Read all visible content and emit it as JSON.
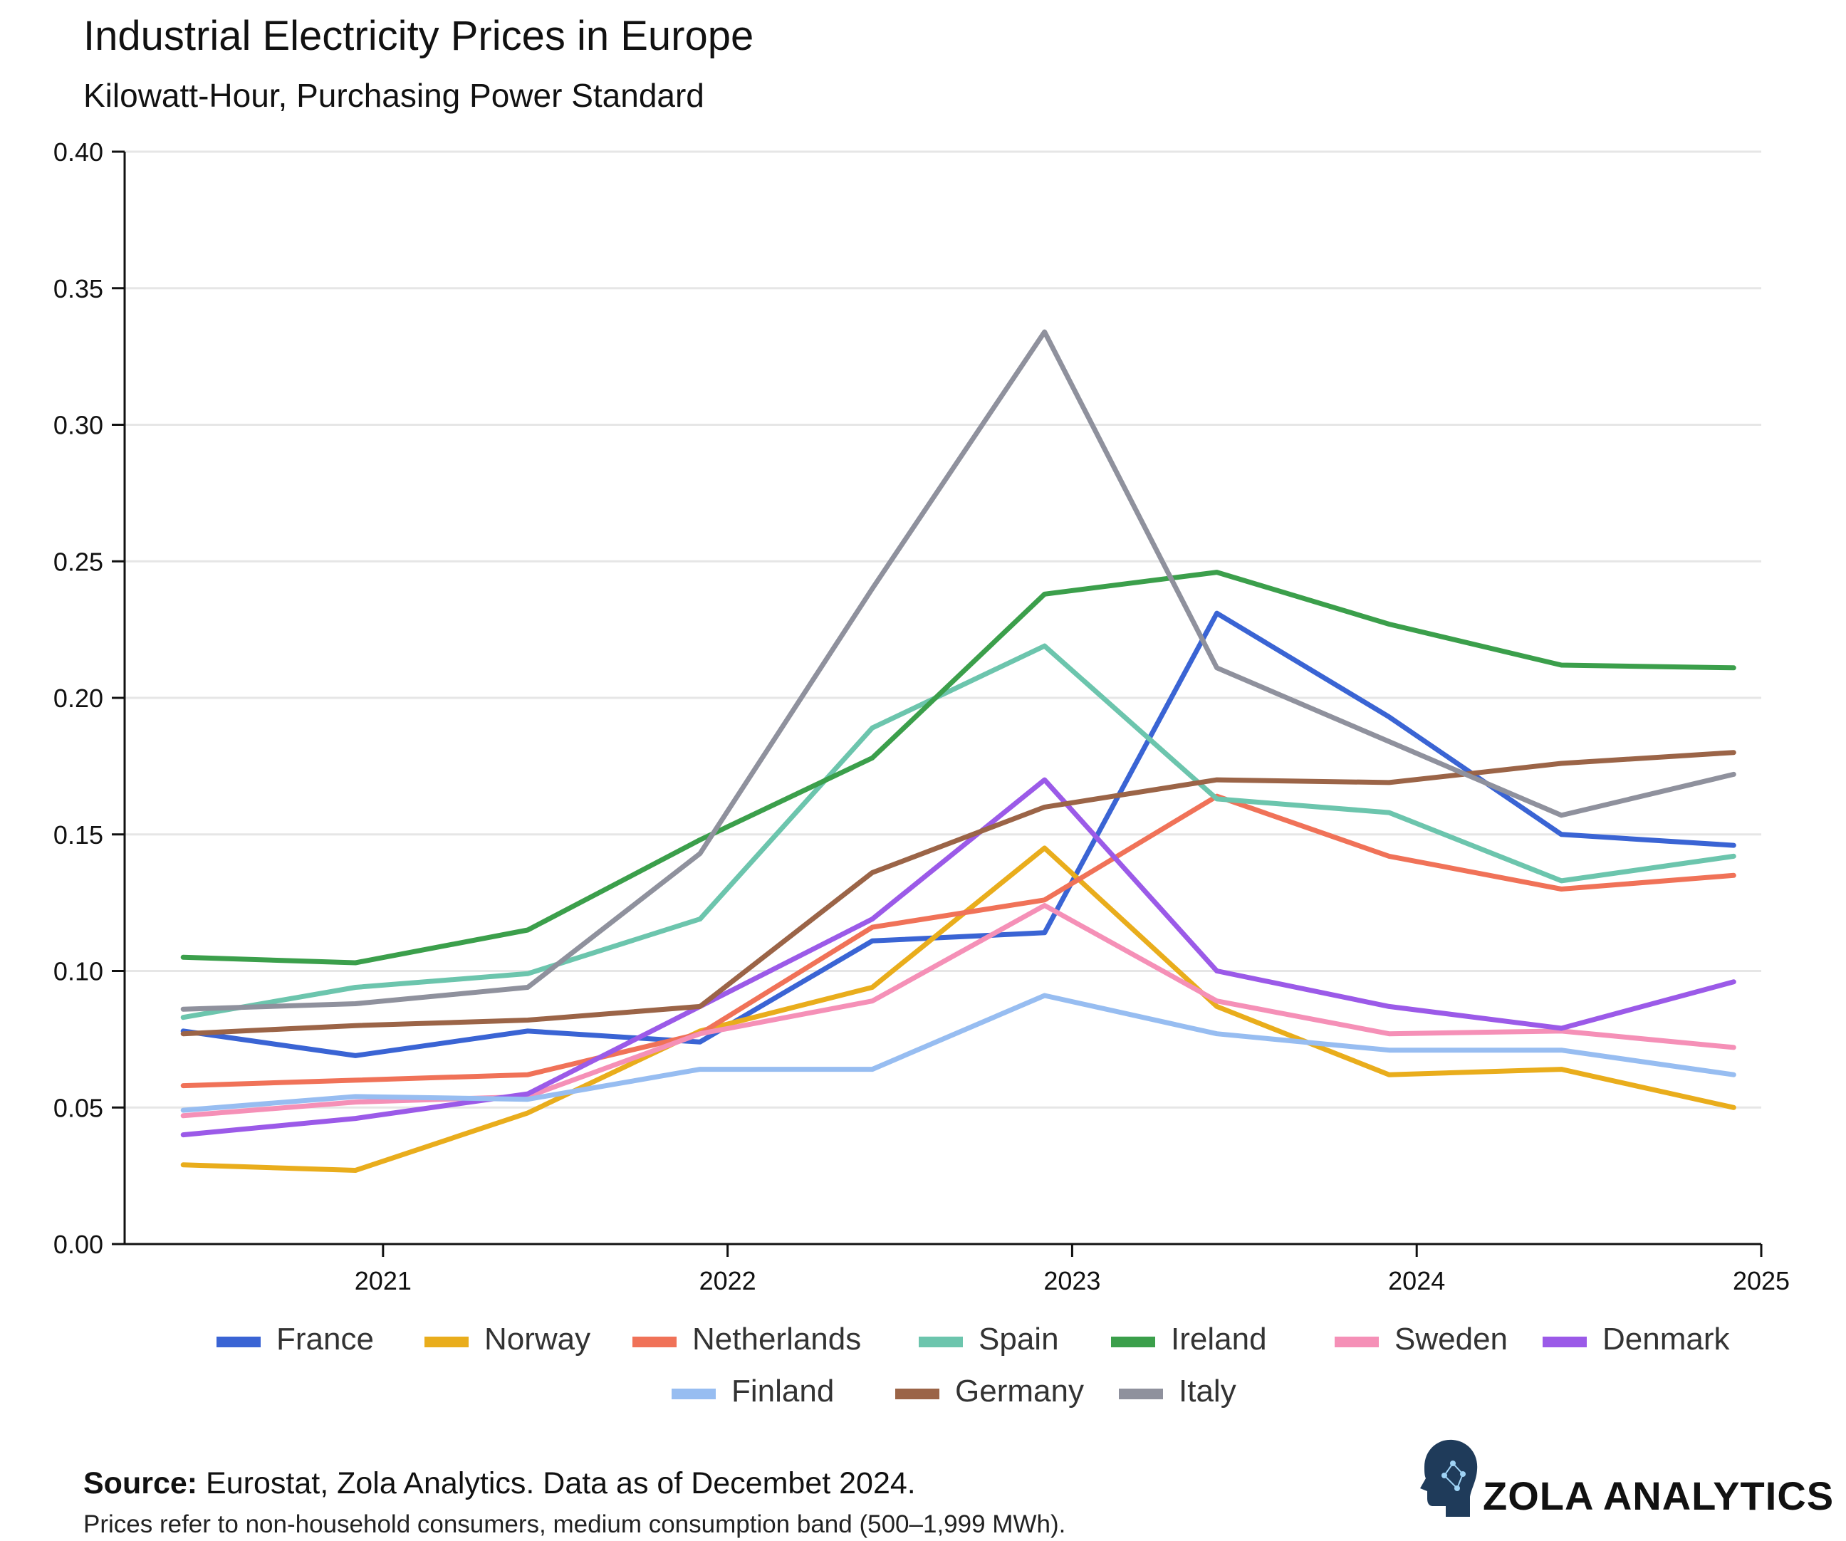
{
  "chart_data": {
    "type": "line",
    "title": "Industrial Electricity Prices in Europe",
    "subtitle": "Kilowatt-Hour, Purchasing Power Standard",
    "xlabel": "",
    "ylabel": "",
    "x": [
      2020.42,
      2020.92,
      2021.42,
      2021.92,
      2022.42,
      2022.92,
      2023.42,
      2023.92,
      2024.42,
      2024.92
    ],
    "xlim": [
      2020.25,
      2025.0
    ],
    "ylim": [
      0.0,
      0.4
    ],
    "xticks": [
      2021,
      2022,
      2023,
      2024,
      2025
    ],
    "xtick_labels": [
      "2021",
      "2022",
      "2023",
      "2024",
      "2025"
    ],
    "yticks": [
      0.0,
      0.05,
      0.1,
      0.15,
      0.2,
      0.25,
      0.3,
      0.35,
      0.4
    ],
    "ytick_labels": [
      "0.00",
      "0.05",
      "0.10",
      "0.15",
      "0.20",
      "0.25",
      "0.30",
      "0.35",
      "0.40"
    ],
    "grid": "horizontal",
    "legend_position": "bottom",
    "series": [
      {
        "name": "France",
        "color": "#3a64d4",
        "values": [
          0.078,
          0.069,
          0.078,
          0.074,
          0.111,
          0.114,
          0.231,
          0.193,
          0.15,
          0.146
        ]
      },
      {
        "name": "Norway",
        "color": "#e9ad1c",
        "values": [
          0.029,
          0.027,
          0.048,
          0.078,
          0.094,
          0.145,
          0.087,
          0.062,
          0.064,
          0.05
        ]
      },
      {
        "name": "Netherlands",
        "color": "#f07258",
        "values": [
          0.058,
          0.06,
          0.062,
          0.077,
          0.116,
          0.126,
          0.164,
          0.142,
          0.13,
          0.135
        ]
      },
      {
        "name": "Spain",
        "color": "#6cc5ad",
        "values": [
          0.083,
          0.094,
          0.099,
          0.119,
          0.189,
          0.219,
          0.163,
          0.158,
          0.133,
          0.142
        ]
      },
      {
        "name": "Ireland",
        "color": "#3b9f4b",
        "values": [
          0.105,
          0.103,
          0.115,
          0.148,
          0.178,
          0.238,
          0.246,
          0.227,
          0.212,
          0.211
        ]
      },
      {
        "name": "Sweden",
        "color": "#f590b7",
        "values": [
          0.047,
          0.052,
          0.054,
          0.077,
          0.089,
          0.124,
          0.089,
          0.077,
          0.078,
          0.072
        ]
      },
      {
        "name": "Denmark",
        "color": "#9b5ae8",
        "values": [
          0.04,
          0.046,
          0.055,
          0.087,
          0.119,
          0.17,
          0.1,
          0.087,
          0.079,
          0.096
        ]
      },
      {
        "name": "Finland",
        "color": "#97bdf1",
        "values": [
          0.049,
          0.054,
          0.053,
          0.064,
          0.064,
          0.091,
          0.077,
          0.071,
          0.071,
          0.062
        ]
      },
      {
        "name": "Germany",
        "color": "#9b6447",
        "values": [
          0.077,
          0.08,
          0.082,
          0.087,
          0.136,
          0.16,
          0.17,
          0.169,
          0.176,
          0.18
        ]
      },
      {
        "name": "Italy",
        "color": "#8f919d",
        "values": [
          0.086,
          0.088,
          0.094,
          0.143,
          0.24,
          0.334,
          0.211,
          0.184,
          0.157,
          0.172
        ]
      }
    ]
  },
  "footer": {
    "source_label": "Source:",
    "source_text": " Eurostat, Zola Analytics. Data as of Decembet 2024.",
    "note": "Prices refer to non-household consumers, medium consumption band (500–1,999 MWh).",
    "brand": "ZOLA ANALYTICS",
    "brand_icon": "head-circuit-icon"
  }
}
